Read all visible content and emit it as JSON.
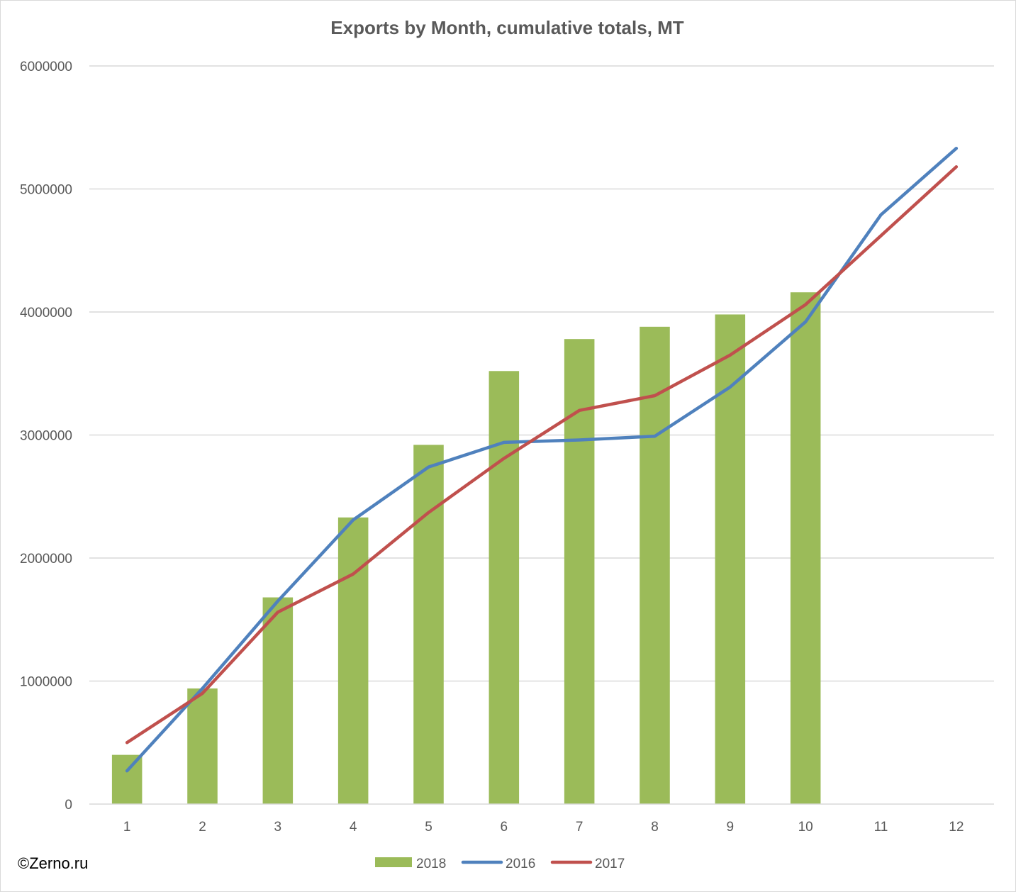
{
  "chart_data": {
    "type": "bar",
    "title": "Exports by Month, cumulative totals, MT",
    "categories": [
      "1",
      "2",
      "3",
      "4",
      "5",
      "6",
      "7",
      "8",
      "9",
      "10",
      "11",
      "12"
    ],
    "ylim": [
      0,
      6000000
    ],
    "yticks": [
      "0",
      "1000000",
      "2000000",
      "3000000",
      "4000000",
      "5000000",
      "6000000"
    ],
    "grid": true,
    "legend_position": "bottom",
    "series": [
      {
        "name": "2018",
        "kind": "bar",
        "color": "#9bbb59",
        "values": [
          400000,
          940000,
          1680000,
          2330000,
          2920000,
          3520000,
          3780000,
          3880000,
          3980000,
          4160000,
          null,
          null
        ]
      },
      {
        "name": "2016",
        "kind": "line",
        "color": "#4f81bd",
        "values": [
          270000,
          940000,
          1650000,
          2310000,
          2740000,
          2940000,
          2960000,
          2990000,
          3390000,
          3920000,
          4790000,
          5330000
        ]
      },
      {
        "name": "2017",
        "kind": "line",
        "color": "#c0504d",
        "values": [
          500000,
          900000,
          1560000,
          1870000,
          2370000,
          2810000,
          3200000,
          3320000,
          3650000,
          4060000,
          4620000,
          5180000
        ]
      }
    ]
  },
  "watermark": "©Zerno.ru"
}
